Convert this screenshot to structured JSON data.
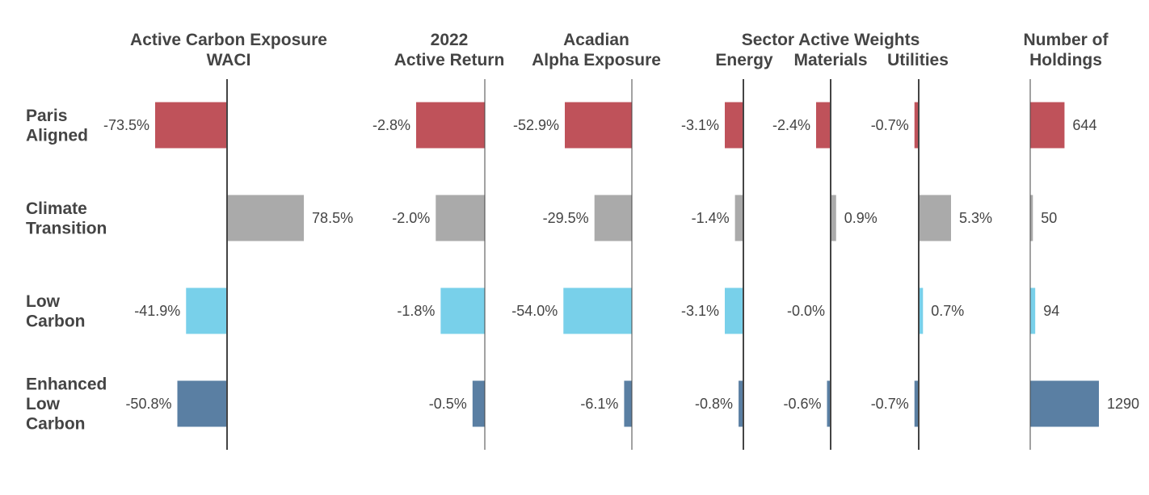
{
  "colors": {
    "Paris Aligned": "#bf525a",
    "Climate Transition": "#aaaaaa",
    "Low Carbon": "#78d0ea",
    "Enhanced Low Carbon": "#5a7fa3",
    "text": "#444444",
    "axis": "#444444"
  },
  "chart_data": {
    "type": "bar",
    "orientation": "horizontal",
    "row_labels": [
      [
        "Paris",
        "Aligned"
      ],
      [
        "Climate",
        "Transition"
      ],
      [
        "Low",
        "Carbon"
      ],
      [
        "Enhanced",
        "Low",
        "Carbon"
      ]
    ],
    "categories": [
      "Paris Aligned",
      "Climate Transition",
      "Low Carbon",
      "Enhanced Low Carbon"
    ],
    "group_title": "Sector Active Weights",
    "panels": [
      {
        "title_lines": [
          "Active Carbon Exposure",
          "WACI"
        ],
        "values": [
          -73.5,
          78.5,
          -41.9,
          -50.8
        ],
        "labels": [
          "-73.5%",
          "78.5%",
          "-41.9%",
          "-50.8%"
        ],
        "scale_max": 73.5
      },
      {
        "title_lines": [
          "2022",
          "Active Return"
        ],
        "values": [
          -2.8,
          -2.0,
          -1.8,
          -0.5
        ],
        "labels": [
          "-2.8%",
          "-2.0%",
          "-1.8%",
          "-0.5%"
        ],
        "scale_max": 2.8
      },
      {
        "title_lines": [
          "Acadian",
          "Alpha Exposure"
        ],
        "values": [
          -52.9,
          -29.5,
          -54.0,
          -6.1
        ],
        "labels": [
          "-52.9%",
          "-29.5%",
          "-54.0%",
          "-6.1%"
        ],
        "scale_max": 52.9
      },
      {
        "title_lines": [
          "Energy"
        ],
        "values": [
          -3.1,
          -1.4,
          -3.1,
          -0.8
        ],
        "labels": [
          "-3.1%",
          "-1.4%",
          "-3.1%",
          "-0.8%"
        ],
        "scale_max": 3.1
      },
      {
        "title_lines": [
          "Materials"
        ],
        "values": [
          -2.4,
          0.9,
          -0.0,
          -0.6
        ],
        "labels": [
          "-2.4%",
          "0.9%",
          "-0.0%",
          "-0.6%"
        ],
        "scale_max": 2.4
      },
      {
        "title_lines": [
          "Utilities"
        ],
        "values": [
          -0.7,
          5.3,
          0.7,
          -0.7
        ],
        "labels": [
          "-0.7%",
          "5.3%",
          "0.7%",
          "-0.7%"
        ],
        "scale_max": 5.3
      },
      {
        "title_lines": [
          "Number of",
          "Holdings"
        ],
        "values": [
          644,
          50,
          94,
          1290
        ],
        "labels": [
          "644",
          "50",
          "94",
          "1290"
        ],
        "scale_max": 1290
      }
    ]
  }
}
